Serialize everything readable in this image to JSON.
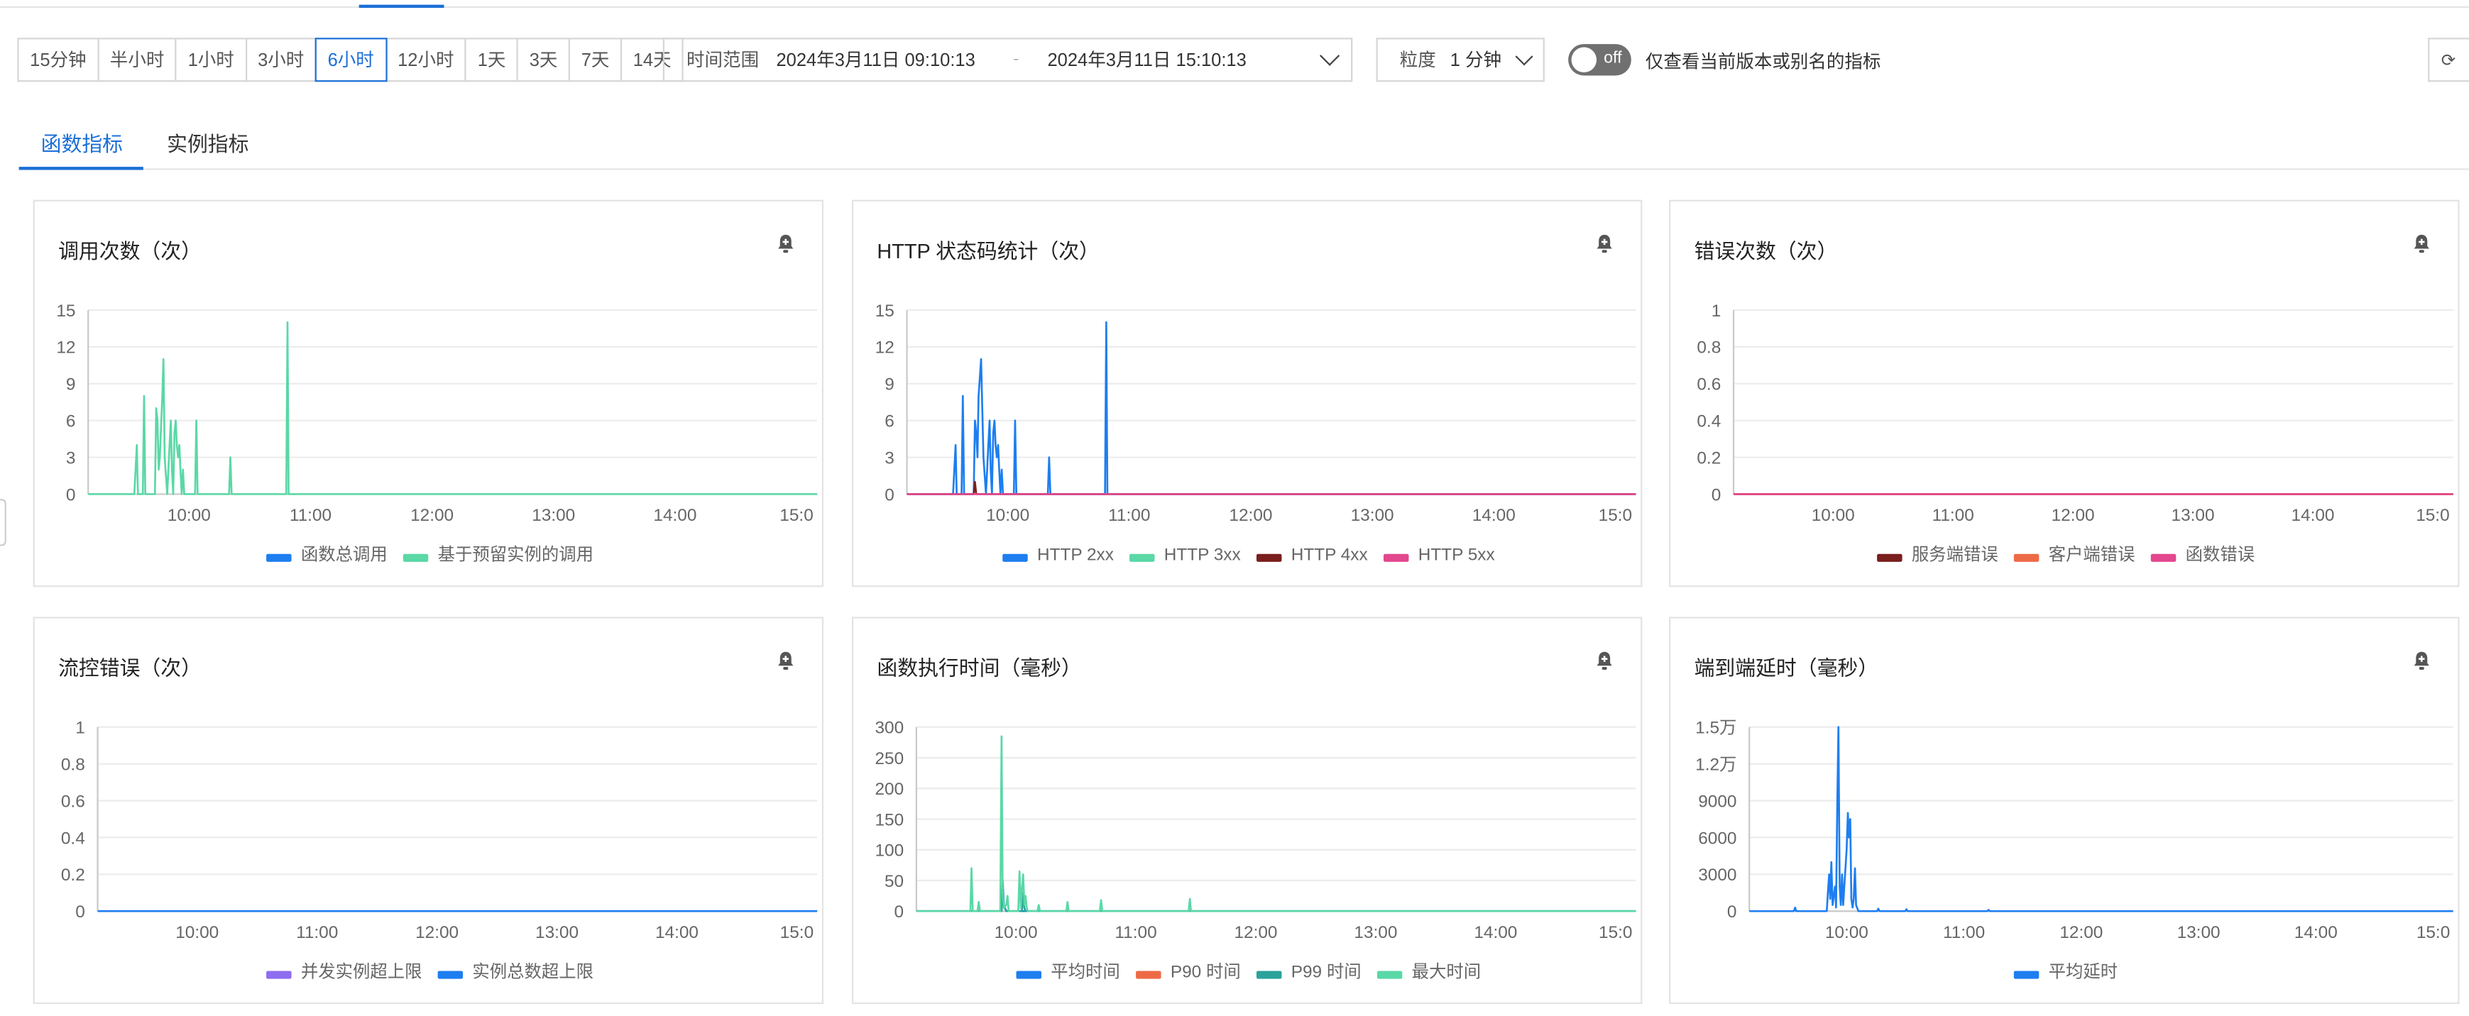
{
  "toolbar": {
    "presets": [
      "15分钟",
      "半小时",
      "1小时",
      "3小时",
      "6小时",
      "12小时",
      "1天",
      "3天",
      "7天",
      "14天"
    ],
    "active_preset": "6小时",
    "range_label": "时间范围",
    "range_start": "2024年3月11日 09:10:13",
    "range_sep": "-",
    "range_end": "2024年3月11日 15:10:13",
    "granularity_label": "粒度",
    "granularity_value": "1 分钟",
    "toggle_state": "off",
    "toggle_label": "仅查看当前版本或别名的指标"
  },
  "tabs": [
    "函数指标",
    "实例指标"
  ],
  "active_tab": "函数指标",
  "colors": {
    "accent": "#1b6fd6",
    "blue": "#1e7ef0",
    "green": "#5ad8a6",
    "darkred": "#7a1e1e",
    "pink": "#e3478e",
    "orange": "#ee6a47",
    "purple": "#8e6df0",
    "teal": "#2aa39a"
  },
  "chart_data": [
    {
      "type": "line",
      "title": "调用次数（次）",
      "ylim": [
        0,
        15
      ],
      "yticks": [
        "15",
        "12",
        "9",
        "6",
        "3",
        "0"
      ],
      "xticks": [
        "10:00",
        "11:00",
        "12:00",
        "13:00",
        "14:00",
        "15:0"
      ],
      "legend_position": "bottom",
      "series": [
        {
          "name": "函数总调用",
          "color": "blue",
          "points": []
        },
        {
          "name": "基于预留实例的调用",
          "color": "green",
          "points": [
            [
              9.17,
              0
            ],
            [
              9.55,
              0
            ],
            [
              9.57,
              4
            ],
            [
              9.58,
              0
            ],
            [
              9.62,
              0
            ],
            [
              9.63,
              8
            ],
            [
              9.64,
              0
            ],
            [
              9.72,
              0
            ],
            [
              9.73,
              7
            ],
            [
              9.74,
              6
            ],
            [
              9.75,
              2
            ],
            [
              9.76,
              3
            ],
            [
              9.78,
              8
            ],
            [
              9.79,
              11
            ],
            [
              9.8,
              3
            ],
            [
              9.82,
              0
            ],
            [
              9.84,
              4
            ],
            [
              9.85,
              6
            ],
            [
              9.86,
              2
            ],
            [
              9.87,
              0
            ],
            [
              9.88,
              5
            ],
            [
              9.89,
              6
            ],
            [
              9.9,
              4
            ],
            [
              9.91,
              3
            ],
            [
              9.92,
              4
            ],
            [
              9.93,
              2
            ],
            [
              9.94,
              0
            ],
            [
              9.95,
              2
            ],
            [
              9.96,
              0
            ],
            [
              10.05,
              0
            ],
            [
              10.06,
              6
            ],
            [
              10.07,
              0
            ],
            [
              10.33,
              0
            ],
            [
              10.34,
              3
            ],
            [
              10.35,
              0
            ],
            [
              10.8,
              0
            ],
            [
              10.81,
              14
            ],
            [
              10.82,
              0
            ],
            [
              15.17,
              0
            ]
          ]
        }
      ]
    },
    {
      "type": "line",
      "title": "HTTP 状态码统计（次）",
      "ylim": [
        0,
        15
      ],
      "yticks": [
        "15",
        "12",
        "9",
        "6",
        "3",
        "0"
      ],
      "xticks": [
        "10:00",
        "11:00",
        "12:00",
        "13:00",
        "14:00",
        "15:0"
      ],
      "legend_position": "bottom",
      "series": [
        {
          "name": "HTTP 2xx",
          "color": "blue",
          "points": [
            [
              9.17,
              0
            ],
            [
              9.55,
              0
            ],
            [
              9.57,
              4
            ],
            [
              9.58,
              0
            ],
            [
              9.62,
              0
            ],
            [
              9.63,
              8
            ],
            [
              9.64,
              0
            ],
            [
              9.72,
              0
            ],
            [
              9.73,
              6
            ],
            [
              9.74,
              5
            ],
            [
              9.75,
              3
            ],
            [
              9.76,
              8
            ],
            [
              9.78,
              11
            ],
            [
              9.8,
              3
            ],
            [
              9.82,
              0
            ],
            [
              9.84,
              4
            ],
            [
              9.85,
              6
            ],
            [
              9.86,
              2
            ],
            [
              9.87,
              0
            ],
            [
              9.88,
              5
            ],
            [
              9.89,
              6
            ],
            [
              9.9,
              4
            ],
            [
              9.91,
              3
            ],
            [
              9.92,
              4
            ],
            [
              9.93,
              2
            ],
            [
              9.94,
              0
            ],
            [
              9.95,
              2
            ],
            [
              9.96,
              0
            ],
            [
              10.05,
              0
            ],
            [
              10.06,
              6
            ],
            [
              10.07,
              0
            ],
            [
              10.33,
              0
            ],
            [
              10.34,
              3
            ],
            [
              10.35,
              0
            ],
            [
              10.8,
              0
            ],
            [
              10.81,
              14
            ],
            [
              10.82,
              0
            ],
            [
              15.17,
              0
            ]
          ]
        },
        {
          "name": "HTTP 3xx",
          "color": "green",
          "points": []
        },
        {
          "name": "HTTP 4xx",
          "color": "darkred",
          "points": [
            [
              9.17,
              0
            ],
            [
              9.72,
              0
            ],
            [
              9.73,
              1
            ],
            [
              9.74,
              0
            ],
            [
              15.17,
              0
            ]
          ]
        },
        {
          "name": "HTTP 5xx",
          "color": "pink",
          "points": [
            [
              9.17,
              0
            ],
            [
              15.17,
              0
            ]
          ]
        }
      ]
    },
    {
      "type": "line",
      "title": "错误次数（次）",
      "ylim": [
        0,
        1
      ],
      "yticks": [
        "1",
        "0.8",
        "0.6",
        "0.4",
        "0.2",
        "0"
      ],
      "xticks": [
        "10:00",
        "11:00",
        "12:00",
        "13:00",
        "14:00",
        "15:0"
      ],
      "legend_position": "bottom",
      "series": [
        {
          "name": "服务端错误",
          "color": "darkred",
          "points": [
            [
              9.17,
              0
            ],
            [
              15.17,
              0
            ]
          ]
        },
        {
          "name": "客户端错误",
          "color": "orange",
          "points": [
            [
              9.17,
              0
            ],
            [
              15.17,
              0
            ]
          ]
        },
        {
          "name": "函数错误",
          "color": "pink",
          "points": [
            [
              9.17,
              0
            ],
            [
              15.17,
              0
            ]
          ]
        }
      ]
    },
    {
      "type": "line",
      "title": "流控错误（次）",
      "ylim": [
        0,
        1
      ],
      "yticks": [
        "1",
        "0.8",
        "0.6",
        "0.4",
        "0.2",
        "0"
      ],
      "xticks": [
        "10:00",
        "11:00",
        "12:00",
        "13:00",
        "14:00",
        "15:0"
      ],
      "legend_position": "bottom",
      "series": [
        {
          "name": "并发实例超上限",
          "color": "purple",
          "points": [
            [
              9.17,
              0
            ],
            [
              15.17,
              0
            ]
          ]
        },
        {
          "name": "实例总数超上限",
          "color": "blue",
          "points": [
            [
              9.17,
              0
            ],
            [
              15.17,
              0
            ]
          ]
        }
      ]
    },
    {
      "type": "line",
      "title": "函数执行时间（毫秒）",
      "ylim": [
        0,
        300
      ],
      "yticks": [
        "300",
        "250",
        "200",
        "150",
        "100",
        "50",
        "0"
      ],
      "xticks": [
        "10:00",
        "11:00",
        "12:00",
        "13:00",
        "14:00",
        "15:0"
      ],
      "legend_position": "bottom",
      "series": [
        {
          "name": "平均时间",
          "color": "blue",
          "points": [
            [
              9.17,
              0
            ],
            [
              9.88,
              0
            ],
            [
              9.89,
              50
            ],
            [
              9.9,
              10
            ],
            [
              9.92,
              0
            ],
            [
              15.17,
              0
            ]
          ]
        },
        {
          "name": "P90 时间",
          "color": "orange",
          "points": []
        },
        {
          "name": "P99 时间",
          "color": "teal",
          "points": [
            [
              9.17,
              0
            ],
            [
              9.88,
              0
            ],
            [
              9.89,
              40
            ],
            [
              9.9,
              8
            ],
            [
              9.92,
              0
            ],
            [
              10.05,
              0
            ],
            [
              10.06,
              30
            ],
            [
              10.07,
              5
            ],
            [
              10.08,
              0
            ],
            [
              15.17,
              0
            ]
          ]
        },
        {
          "name": "最大时间",
          "color": "green",
          "points": [
            [
              9.17,
              0
            ],
            [
              9.62,
              0
            ],
            [
              9.63,
              70
            ],
            [
              9.64,
              0
            ],
            [
              9.68,
              0
            ],
            [
              9.69,
              15
            ],
            [
              9.7,
              0
            ],
            [
              9.87,
              0
            ],
            [
              9.88,
              285
            ],
            [
              9.89,
              30
            ],
            [
              9.9,
              5
            ],
            [
              9.92,
              10
            ],
            [
              9.93,
              25
            ],
            [
              9.94,
              0
            ],
            [
              10.02,
              0
            ],
            [
              10.03,
              65
            ],
            [
              10.04,
              5
            ],
            [
              10.05,
              35
            ],
            [
              10.06,
              60
            ],
            [
              10.07,
              10
            ],
            [
              10.08,
              25
            ],
            [
              10.09,
              5
            ],
            [
              10.1,
              0
            ],
            [
              10.18,
              0
            ],
            [
              10.19,
              10
            ],
            [
              10.2,
              0
            ],
            [
              10.42,
              0
            ],
            [
              10.43,
              15
            ],
            [
              10.44,
              0
            ],
            [
              10.7,
              0
            ],
            [
              10.71,
              18
            ],
            [
              10.72,
              0
            ],
            [
              11.44,
              0
            ],
            [
              11.45,
              20
            ],
            [
              11.46,
              0
            ],
            [
              15.17,
              0
            ]
          ]
        }
      ]
    },
    {
      "type": "line",
      "title": "端到端延时（毫秒）",
      "ylim": [
        0,
        15000
      ],
      "yticks": [
        "1.5万",
        "1.2万",
        "9000",
        "6000",
        "3000",
        "0"
      ],
      "xticks": [
        "10:00",
        "11:00",
        "12:00",
        "13:00",
        "14:00",
        "15:0"
      ],
      "legend_position": "bottom",
      "series": [
        {
          "name": "平均延时",
          "color": "blue",
          "points": [
            [
              9.17,
              0
            ],
            [
              9.55,
              0
            ],
            [
              9.56,
              300
            ],
            [
              9.57,
              0
            ],
            [
              9.83,
              0
            ],
            [
              9.84,
              1500
            ],
            [
              9.85,
              3000
            ],
            [
              9.86,
              1000
            ],
            [
              9.87,
              4000
            ],
            [
              9.88,
              500
            ],
            [
              9.9,
              2000
            ],
            [
              9.91,
              300
            ],
            [
              9.92,
              9000
            ],
            [
              9.93,
              15000
            ],
            [
              9.94,
              2000
            ],
            [
              9.95,
              500
            ],
            [
              9.96,
              3000
            ],
            [
              9.97,
              500
            ],
            [
              10.0,
              5000
            ],
            [
              10.01,
              8000
            ],
            [
              10.02,
              6000
            ],
            [
              10.03,
              7500
            ],
            [
              10.04,
              1000
            ],
            [
              10.05,
              300
            ],
            [
              10.06,
              1000
            ],
            [
              10.07,
              3500
            ],
            [
              10.08,
              500
            ],
            [
              10.1,
              0
            ],
            [
              10.26,
              0
            ],
            [
              10.27,
              200
            ],
            [
              10.28,
              0
            ],
            [
              10.5,
              0
            ],
            [
              10.51,
              150
            ],
            [
              10.52,
              0
            ],
            [
              11.2,
              0
            ],
            [
              11.21,
              100
            ],
            [
              11.22,
              0
            ],
            [
              15.17,
              0
            ]
          ]
        }
      ]
    }
  ]
}
